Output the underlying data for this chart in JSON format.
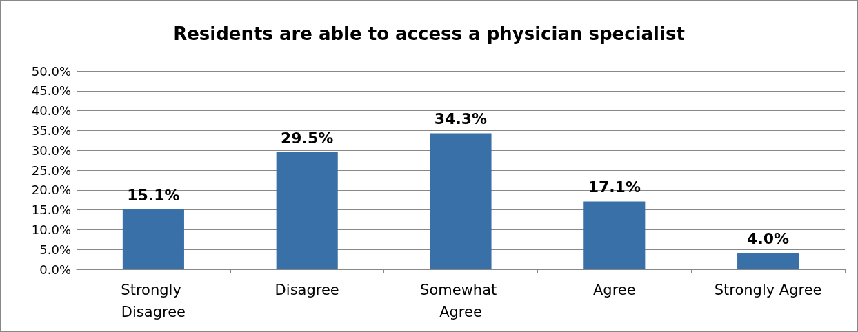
{
  "chart_data": {
    "type": "bar",
    "title": "Residents are able to access a physician specialist",
    "categories": [
      "Strongly Disagree",
      "Disagree",
      "Somewhat Agree",
      "Agree",
      "Strongly Agree"
    ],
    "values": [
      15.1,
      29.5,
      34.3,
      17.1,
      4.0
    ],
    "value_labels": [
      "15.1%",
      "29.5%",
      "34.3%",
      "17.1%",
      "4.0%"
    ],
    "color": "#3a70a8",
    "ylim": [
      0,
      50
    ],
    "yticks": [
      {
        "value": 0,
        "label": "0.0%"
      },
      {
        "value": 5,
        "label": "5.0%"
      },
      {
        "value": 10,
        "label": "10.0%"
      },
      {
        "value": 15,
        "label": "15.0%"
      },
      {
        "value": 20,
        "label": "20.0%"
      },
      {
        "value": 25,
        "label": "25.0%"
      },
      {
        "value": 30,
        "label": "30.0%"
      },
      {
        "value": 35,
        "label": "35.0%"
      },
      {
        "value": 40,
        "label": "40.0%"
      },
      {
        "value": 45,
        "label": "45.0%"
      },
      {
        "value": 50,
        "label": "50.0%"
      }
    ],
    "grid": "y"
  }
}
